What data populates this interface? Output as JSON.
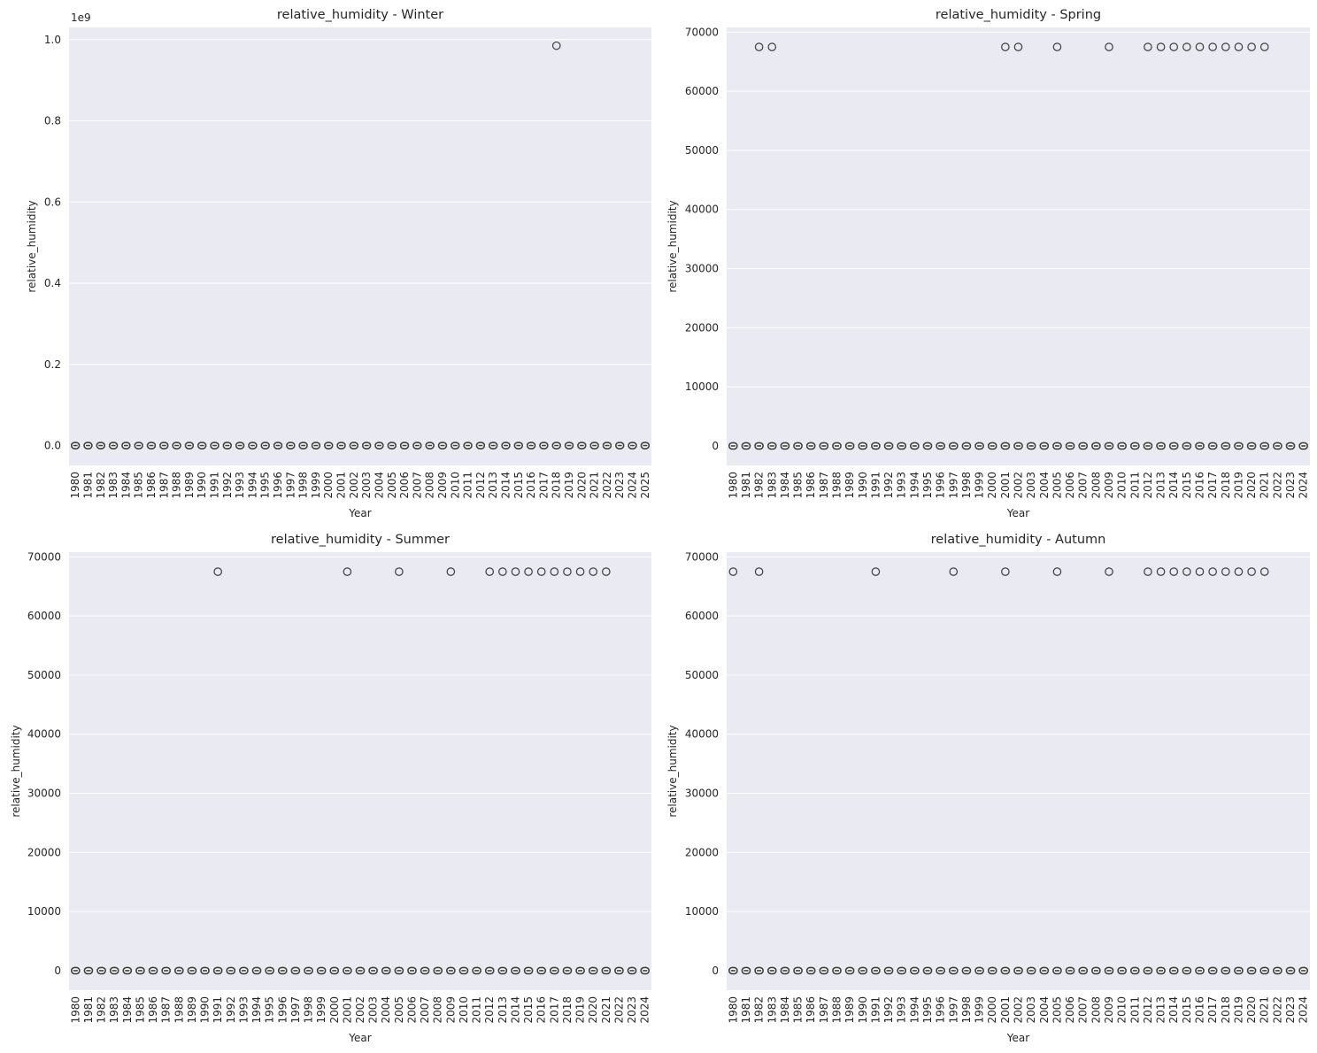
{
  "figure": {
    "panels": 4,
    "layout": "2x2",
    "background": "#eaeaf2",
    "box_edge_color": "#3d3d3d"
  },
  "chart_data": [
    {
      "type": "box",
      "title": "relative_humidity - Winter",
      "xlabel": "Year",
      "ylabel": "relative_humidity",
      "y_offset_label": "1e9",
      "ylim": [
        -0.049,
        1.03
      ],
      "yticks": [
        0.0,
        0.2,
        0.4,
        0.6,
        0.8,
        1.0
      ],
      "ytick_labels": [
        "0.0",
        "0.2",
        "0.4",
        "0.6",
        "0.8",
        "1.0"
      ],
      "categories": [
        "1980",
        "1981",
        "1982",
        "1983",
        "1984",
        "1985",
        "1986",
        "1987",
        "1988",
        "1989",
        "1990",
        "1991",
        "1992",
        "1993",
        "1994",
        "1995",
        "1996",
        "1997",
        "1998",
        "1999",
        "2000",
        "2001",
        "2002",
        "2003",
        "2004",
        "2005",
        "2006",
        "2007",
        "2008",
        "2009",
        "2010",
        "2011",
        "2012",
        "2013",
        "2014",
        "2015",
        "2016",
        "2017",
        "2018",
        "2019",
        "2020",
        "2021",
        "2022",
        "2023",
        "2024",
        "2025"
      ],
      "box_value": 0.0,
      "outliers": [
        {
          "year": "2018",
          "value": 0.985
        }
      ]
    },
    {
      "type": "box",
      "title": "relative_humidity - Spring",
      "xlabel": "Year",
      "ylabel": "relative_humidity",
      "ylim": [
        -3300,
        70800
      ],
      "yticks": [
        0,
        10000,
        20000,
        30000,
        40000,
        50000,
        60000,
        70000
      ],
      "ytick_labels": [
        "0",
        "10000",
        "20000",
        "30000",
        "40000",
        "50000",
        "60000",
        "70000"
      ],
      "categories": [
        "1980",
        "1981",
        "1982",
        "1983",
        "1984",
        "1985",
        "1986",
        "1987",
        "1988",
        "1989",
        "1990",
        "1991",
        "1992",
        "1993",
        "1994",
        "1995",
        "1996",
        "1997",
        "1998",
        "1999",
        "2000",
        "2001",
        "2002",
        "2003",
        "2004",
        "2005",
        "2006",
        "2007",
        "2008",
        "2009",
        "2010",
        "2011",
        "2012",
        "2013",
        "2014",
        "2015",
        "2016",
        "2017",
        "2018",
        "2019",
        "2020",
        "2021",
        "2022",
        "2023",
        "2024"
      ],
      "box_value": 0,
      "outliers": [
        {
          "year": "1982",
          "value": 67500
        },
        {
          "year": "1983",
          "value": 67500
        },
        {
          "year": "2001",
          "value": 67500
        },
        {
          "year": "2002",
          "value": 67500
        },
        {
          "year": "2005",
          "value": 67500
        },
        {
          "year": "2009",
          "value": 67500
        },
        {
          "year": "2012",
          "value": 67500
        },
        {
          "year": "2013",
          "value": 67500
        },
        {
          "year": "2014",
          "value": 67500
        },
        {
          "year": "2015",
          "value": 67500
        },
        {
          "year": "2016",
          "value": 67500
        },
        {
          "year": "2017",
          "value": 67500
        },
        {
          "year": "2018",
          "value": 67500
        },
        {
          "year": "2019",
          "value": 67500
        },
        {
          "year": "2020",
          "value": 67500
        },
        {
          "year": "2021",
          "value": 67500
        }
      ]
    },
    {
      "type": "box",
      "title": "relative_humidity - Summer",
      "xlabel": "Year",
      "ylabel": "relative_humidity",
      "ylim": [
        -3300,
        70800
      ],
      "yticks": [
        0,
        10000,
        20000,
        30000,
        40000,
        50000,
        60000,
        70000
      ],
      "ytick_labels": [
        "0",
        "10000",
        "20000",
        "30000",
        "40000",
        "50000",
        "60000",
        "70000"
      ],
      "categories": [
        "1980",
        "1981",
        "1982",
        "1983",
        "1984",
        "1985",
        "1986",
        "1987",
        "1988",
        "1989",
        "1990",
        "1991",
        "1992",
        "1993",
        "1994",
        "1995",
        "1996",
        "1997",
        "1998",
        "1999",
        "2000",
        "2001",
        "2002",
        "2003",
        "2004",
        "2005",
        "2006",
        "2007",
        "2008",
        "2009",
        "2010",
        "2011",
        "2012",
        "2013",
        "2014",
        "2015",
        "2016",
        "2017",
        "2018",
        "2019",
        "2020",
        "2021",
        "2022",
        "2023",
        "2024"
      ],
      "box_value": 0,
      "outliers": [
        {
          "year": "1991",
          "value": 67500
        },
        {
          "year": "2001",
          "value": 67500
        },
        {
          "year": "2005",
          "value": 67500
        },
        {
          "year": "2009",
          "value": 67500
        },
        {
          "year": "2012",
          "value": 67500
        },
        {
          "year": "2013",
          "value": 67500
        },
        {
          "year": "2014",
          "value": 67500
        },
        {
          "year": "2015",
          "value": 67500
        },
        {
          "year": "2016",
          "value": 67500
        },
        {
          "year": "2017",
          "value": 67500
        },
        {
          "year": "2018",
          "value": 67500
        },
        {
          "year": "2019",
          "value": 67500
        },
        {
          "year": "2020",
          "value": 67500
        },
        {
          "year": "2021",
          "value": 67500
        }
      ]
    },
    {
      "type": "box",
      "title": "relative_humidity - Autumn",
      "xlabel": "Year",
      "ylabel": "relative_humidity",
      "ylim": [
        -3300,
        70800
      ],
      "yticks": [
        0,
        10000,
        20000,
        30000,
        40000,
        50000,
        60000,
        70000
      ],
      "ytick_labels": [
        "0",
        "10000",
        "20000",
        "30000",
        "40000",
        "50000",
        "60000",
        "70000"
      ],
      "categories": [
        "1980",
        "1981",
        "1982",
        "1983",
        "1984",
        "1985",
        "1986",
        "1987",
        "1988",
        "1989",
        "1990",
        "1991",
        "1992",
        "1993",
        "1994",
        "1995",
        "1996",
        "1997",
        "1998",
        "1999",
        "2000",
        "2001",
        "2002",
        "2003",
        "2004",
        "2005",
        "2006",
        "2007",
        "2008",
        "2009",
        "2010",
        "2011",
        "2012",
        "2013",
        "2014",
        "2015",
        "2016",
        "2017",
        "2018",
        "2019",
        "2020",
        "2021",
        "2022",
        "2023",
        "2024"
      ],
      "box_value": 0,
      "outliers": [
        {
          "year": "1980",
          "value": 67500
        },
        {
          "year": "1982",
          "value": 67500
        },
        {
          "year": "1991",
          "value": 67500
        },
        {
          "year": "1997",
          "value": 67500
        },
        {
          "year": "2001",
          "value": 67500
        },
        {
          "year": "2005",
          "value": 67500
        },
        {
          "year": "2009",
          "value": 67500
        },
        {
          "year": "2012",
          "value": 67500
        },
        {
          "year": "2013",
          "value": 67500
        },
        {
          "year": "2014",
          "value": 67500
        },
        {
          "year": "2015",
          "value": 67500
        },
        {
          "year": "2016",
          "value": 67500
        },
        {
          "year": "2017",
          "value": 67500
        },
        {
          "year": "2018",
          "value": 67500
        },
        {
          "year": "2019",
          "value": 67500
        },
        {
          "year": "2020",
          "value": 67500
        },
        {
          "year": "2021",
          "value": 67500
        }
      ]
    }
  ]
}
